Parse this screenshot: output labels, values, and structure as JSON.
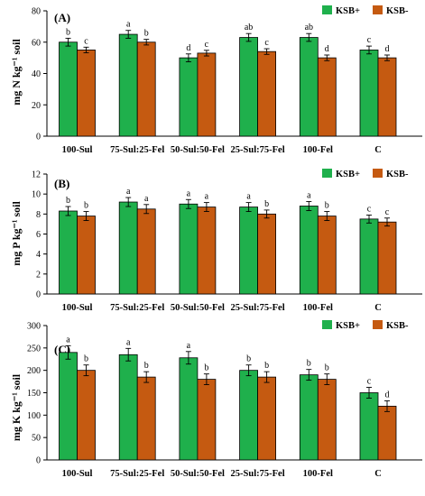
{
  "chart_data": [
    {
      "type": "bar",
      "panel": "(A)",
      "ylabel": "mg N kg⁻¹ soil",
      "ylim": [
        0,
        80
      ],
      "yticks": [
        "0",
        "20",
        "40",
        "60",
        "80"
      ],
      "categories": [
        "100-Sul",
        "75-Sul:25-Fel",
        "50-Sul:50-Fel",
        "25-Sul:75-Fel",
        "100-Fel",
        "C"
      ],
      "series": [
        {
          "name": "KSB+",
          "color": "#1fb04c",
          "values": [
            60,
            65,
            50,
            63,
            63,
            55
          ],
          "errors": [
            2.5,
            2.5,
            2.5,
            2.5,
            2.5,
            2.5
          ],
          "letters": [
            "b",
            "a",
            "d",
            "ab",
            "ab",
            "c"
          ]
        },
        {
          "name": "KSB-",
          "color": "#c55a11",
          "values": [
            55,
            60,
            53,
            54,
            50,
            50
          ],
          "errors": [
            1.8,
            1.8,
            1.8,
            1.8,
            1.8,
            1.8
          ],
          "letters": [
            "c",
            "b",
            "c",
            "c",
            "d",
            "d"
          ]
        }
      ],
      "legend": "top-right"
    },
    {
      "type": "bar",
      "panel": "(B)",
      "ylabel": "mg P kg⁻¹ soil",
      "ylim": [
        0,
        12
      ],
      "yticks": [
        "0",
        "2",
        "4",
        "6",
        "8",
        "10",
        "12"
      ],
      "categories": [
        "100-Sul",
        "75-Sul:25-Fel",
        "50-Sul:50-Fel",
        "25-Sul:75-Fel",
        "100-Fel",
        "C"
      ],
      "series": [
        {
          "name": "KSB+",
          "color": "#1fb04c",
          "values": [
            8.3,
            9.2,
            9.0,
            8.7,
            8.8,
            7.5
          ],
          "errors": [
            0.45,
            0.45,
            0.45,
            0.45,
            0.45,
            0.4
          ],
          "letters": [
            "b",
            "a",
            "a",
            "a",
            "a",
            "c"
          ]
        },
        {
          "name": "KSB-",
          "color": "#c55a11",
          "values": [
            7.8,
            8.5,
            8.7,
            8.0,
            7.8,
            7.2
          ],
          "errors": [
            0.45,
            0.45,
            0.45,
            0.4,
            0.45,
            0.4
          ],
          "letters": [
            "b",
            "a",
            "a",
            "b",
            "b",
            "c"
          ]
        }
      ],
      "legend": "top-right"
    },
    {
      "type": "bar",
      "panel": "(C)",
      "ylabel": "mg K kg⁻¹ soil",
      "ylim": [
        0,
        300
      ],
      "yticks": [
        "0",
        "50",
        "100",
        "150",
        "200",
        "250",
        "300"
      ],
      "categories": [
        "100-Sul",
        "75-Sul:25-Fel",
        "50-Sul:50-Fel",
        "25-Sul:75-Fel",
        "100-Fel",
        "C"
      ],
      "series": [
        {
          "name": "KSB+",
          "color": "#1fb04c",
          "values": [
            240,
            235,
            228,
            200,
            190,
            150
          ],
          "errors": [
            15,
            14,
            14,
            12,
            12,
            12
          ],
          "letters": [
            "a",
            "a",
            "a",
            "b",
            "b",
            "c"
          ]
        },
        {
          "name": "KSB-",
          "color": "#c55a11",
          "values": [
            200,
            185,
            180,
            185,
            180,
            120
          ],
          "errors": [
            12,
            12,
            12,
            12,
            12,
            12
          ],
          "letters": [
            "b",
            "b",
            "b",
            "b",
            "b",
            "d"
          ]
        }
      ],
      "legend": "top-right"
    }
  ]
}
